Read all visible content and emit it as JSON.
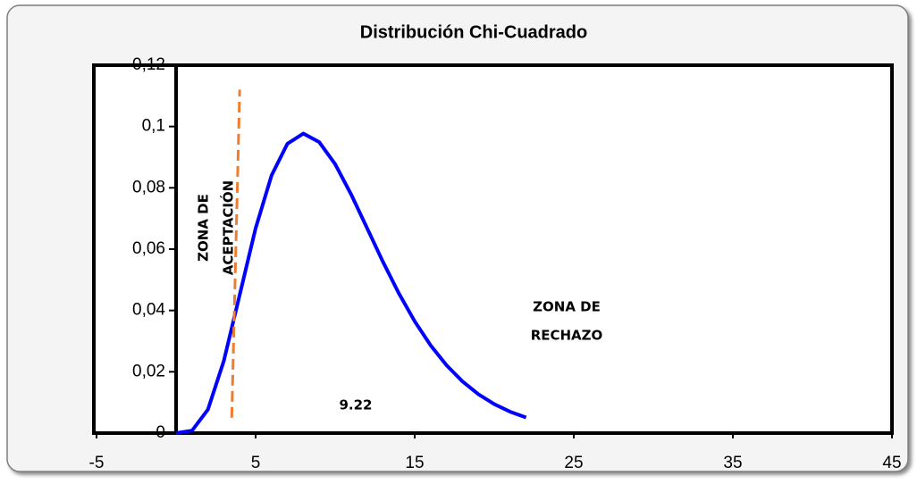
{
  "chart_data": {
    "type": "line",
    "title": "Distribución Chi-Cuadrado",
    "x": [
      0,
      1,
      2,
      3,
      4,
      5,
      6,
      7,
      8,
      9,
      10,
      11,
      12,
      13,
      14,
      15,
      16,
      17,
      18,
      19,
      20,
      21,
      22
    ],
    "series": [
      {
        "color": "#0000ff",
        "values": [
          0,
          0.00079,
          0.00766,
          0.02353,
          0.04511,
          0.0668,
          0.08402,
          0.0944,
          0.0977,
          0.0949,
          0.08773,
          0.07791,
          0.06693,
          0.05591,
          0.04561,
          0.03646,
          0.02863,
          0.02213,
          0.01687,
          0.0127,
          0.00946,
          0.00697,
          0.00509
        ]
      }
    ],
    "critical_line": {
      "color": "#ed7d31",
      "x": [
        3.5,
        4.0
      ],
      "values": [
        0.005,
        0.112
      ]
    },
    "annotations": [
      {
        "lines": [
          "ZONA DE",
          "ACEPTACIÓN"
        ]
      },
      {
        "lines": [
          "ZONA DE",
          "RECHAZO"
        ]
      },
      {
        "text": "9.22"
      }
    ],
    "xlim": [
      -5,
      45
    ],
    "xticks": [
      -5,
      5,
      15,
      25,
      35,
      45
    ],
    "ylim": [
      0,
      0.12
    ],
    "yticks": [
      0,
      {
        "value": 0.02,
        "label": "0,02"
      },
      {
        "value": 0.04,
        "label": "0,04"
      },
      {
        "value": 0.06,
        "label": "0,06"
      },
      {
        "value": 0.08,
        "label": "0,08"
      },
      {
        "value": 0.1,
        "label": "0,1"
      },
      {
        "value": 0.12,
        "label": "0,12"
      }
    ]
  }
}
